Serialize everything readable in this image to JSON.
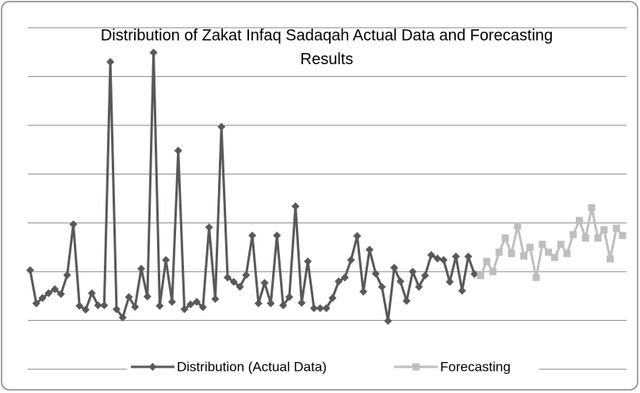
{
  "chart_data": {
    "type": "line",
    "title": "Distribution of Zakat Infaq Sadaqah Actual Data and Forecasting Results",
    "ylim": [
      0,
      7
    ],
    "yticks": [
      0,
      1,
      2,
      3,
      4,
      5,
      6,
      7
    ],
    "grid": true,
    "legend": "bottom",
    "series": [
      {
        "name": "Distribution (Actual Data)",
        "color": "#595959",
        "marker": "diamond",
        "values": [
          2.03,
          1.35,
          1.46,
          1.56,
          1.64,
          1.54,
          1.93,
          2.97,
          1.3,
          1.22,
          1.56,
          1.31,
          1.31,
          6.3,
          1.23,
          1.06,
          1.48,
          1.28,
          2.06,
          1.49,
          6.49,
          1.3,
          2.24,
          1.38,
          4.48,
          1.23,
          1.33,
          1.38,
          1.27,
          2.91,
          1.44,
          4.97,
          1.88,
          1.79,
          1.69,
          1.93,
          2.74,
          1.35,
          1.77,
          1.35,
          2.74,
          1.31,
          1.48,
          3.34,
          1.36,
          2.21,
          1.25,
          1.25,
          1.25,
          1.46,
          1.8,
          1.88,
          2.24,
          2.73,
          1.59,
          2.45,
          1.96,
          1.69,
          0.99,
          2.08,
          1.8,
          1.4,
          2.0,
          1.69,
          1.92,
          2.34,
          2.27,
          2.24,
          1.79,
          2.31,
          1.61,
          2.31,
          1.95,
          null,
          null,
          null,
          null,
          null,
          null,
          null,
          null,
          null,
          null,
          null,
          null,
          null,
          null,
          null,
          null,
          null,
          null,
          null,
          null,
          null,
          null,
          null,
          null
        ]
      },
      {
        "name": "Forecasting",
        "color": "#bfbfbf",
        "marker": "square",
        "values": [
          null,
          null,
          null,
          null,
          null,
          null,
          null,
          null,
          null,
          null,
          null,
          null,
          null,
          null,
          null,
          null,
          null,
          null,
          null,
          null,
          null,
          null,
          null,
          null,
          null,
          null,
          null,
          null,
          null,
          null,
          null,
          null,
          null,
          null,
          null,
          null,
          null,
          null,
          null,
          null,
          null,
          null,
          null,
          null,
          null,
          null,
          null,
          null,
          null,
          null,
          null,
          null,
          null,
          null,
          null,
          null,
          null,
          null,
          null,
          null,
          null,
          null,
          null,
          null,
          null,
          null,
          null,
          null,
          null,
          null,
          null,
          null,
          null,
          1.92,
          2.21,
          2.0,
          2.4,
          2.69,
          2.37,
          2.94,
          2.32,
          2.5,
          1.88,
          2.56,
          2.4,
          2.29,
          2.56,
          2.37,
          2.76,
          3.05,
          2.69,
          3.31,
          2.69,
          2.86,
          2.26,
          2.89,
          2.74
        ]
      }
    ]
  }
}
